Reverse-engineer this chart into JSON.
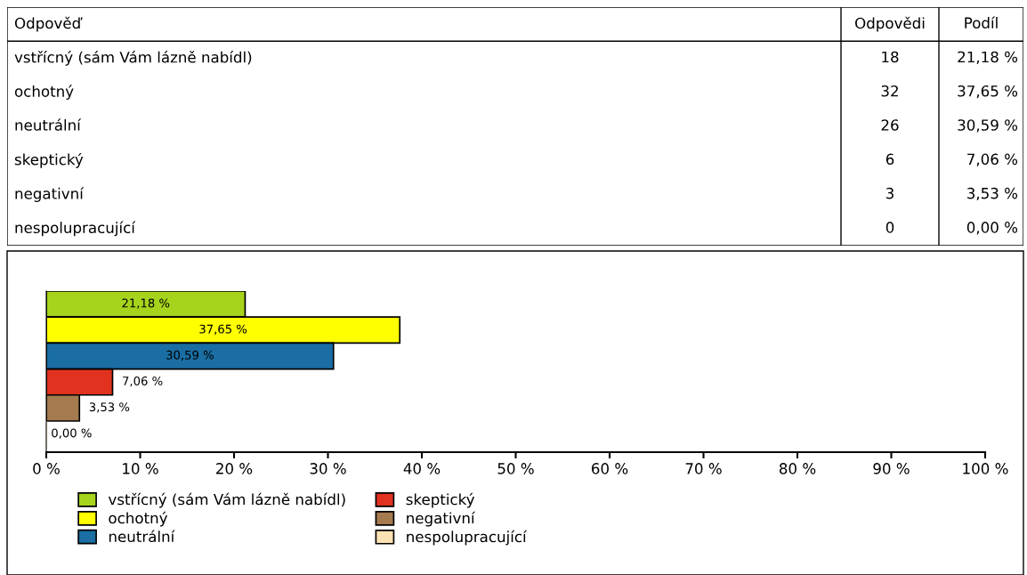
{
  "chart_data": [
    {
      "type": "other",
      "ylabel": "Odpověď",
      "categories": [
        "vstřícný (sám Vám lázně nabídl)",
        "ochotný",
        "neutrální",
        "skeptický",
        "negativní",
        "nespolupracující"
      ],
      "series": [
        {
          "name": "Odpovědi",
          "values": [
            18,
            32,
            26,
            6,
            3,
            0
          ],
          "value_labels": [
            "18",
            "32",
            "26",
            "6",
            "3",
            "0"
          ]
        },
        {
          "name": "Podíl",
          "values": [
            21.18,
            37.65,
            30.59,
            7.06,
            3.53,
            0.0
          ],
          "value_labels": [
            "21,18 %",
            "37,65 %",
            "30,59 %",
            "7,06 %",
            "3,53 %",
            "0,00 %"
          ]
        }
      ]
    },
    {
      "type": "bar",
      "orientation": "horizontal",
      "categories": [
        null
      ],
      "xlim": [
        0,
        100
      ],
      "xticks": [
        {
          "value": 0,
          "label": "0 %"
        },
        {
          "value": 10,
          "label": "10 %"
        },
        {
          "value": 20,
          "label": "20 %"
        },
        {
          "value": 30,
          "label": "30 %"
        },
        {
          "value": 40,
          "label": "40 %"
        },
        {
          "value": 50,
          "label": "50 %"
        },
        {
          "value": 60,
          "label": "60 %"
        },
        {
          "value": 70,
          "label": "70 %"
        },
        {
          "value": 80,
          "label": "80 %"
        },
        {
          "value": 90,
          "label": "90 %"
        },
        {
          "value": 100,
          "label": "100 %"
        }
      ],
      "tick_labels": "x",
      "grid": false,
      "legend": "bottom",
      "series": [
        {
          "name": "vstřícný (sám Vám lázně nabídl)",
          "color": "#a6d41c",
          "values": [
            21.18
          ],
          "value_labels": [
            "21,18 %"
          ]
        },
        {
          "name": "ochotný",
          "color": "#ffff00",
          "values": [
            37.65
          ],
          "value_labels": [
            "37,65 %"
          ]
        },
        {
          "name": "neutrální",
          "color": "#1a6ea3",
          "values": [
            30.59
          ],
          "value_labels": [
            "30,59 %"
          ]
        },
        {
          "name": "skeptický",
          "color": "#e0321e",
          "values": [
            7.06
          ],
          "value_labels": [
            "7,06 %"
          ]
        },
        {
          "name": "negativní",
          "color": "#a47a4e",
          "values": [
            3.53
          ],
          "value_labels": [
            "3,53 %"
          ]
        },
        {
          "name": "nespolupracující",
          "color": "#fde2b4",
          "values": [
            0.0
          ],
          "value_labels": [
            "0,00 %"
          ]
        }
      ]
    }
  ]
}
